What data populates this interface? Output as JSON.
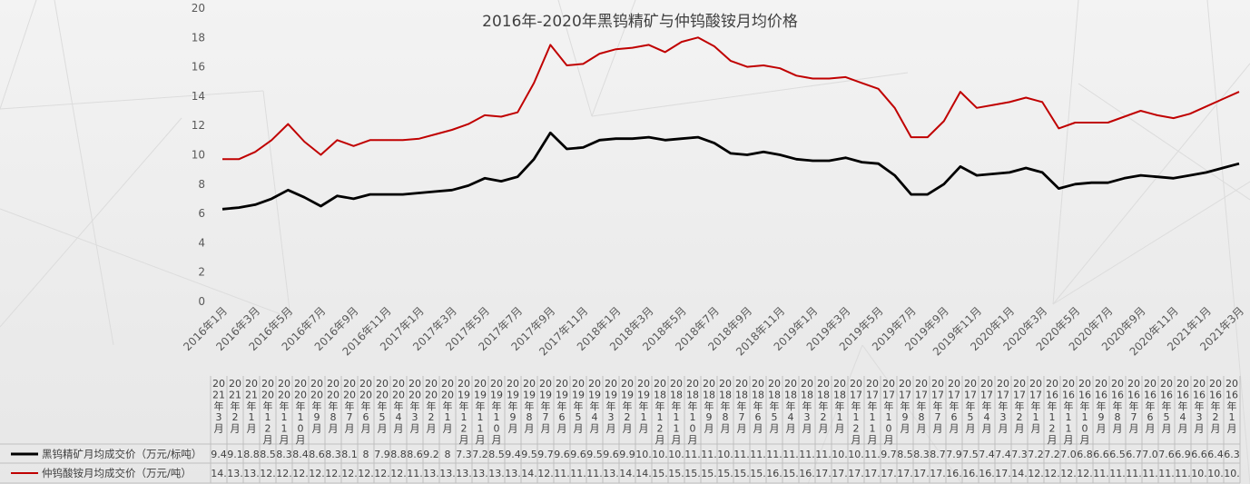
{
  "chart_data": {
    "type": "line",
    "title": "2016年-2020年黑钨精矿与仲钨酸铵月均价格",
    "xlabel": "",
    "ylabel": "",
    "ylim": [
      0,
      20
    ],
    "yticks": [
      0,
      2,
      4,
      6,
      8,
      10,
      12,
      14,
      16,
      18,
      20
    ],
    "grid": false,
    "legend": "bottom-left (data table)",
    "categories": [
      "2016年1月",
      "2016年2月",
      "2016年3月",
      "2016年4月",
      "2016年5月",
      "2016年6月",
      "2016年7月",
      "2016年8月",
      "2016年9月",
      "2016年10月",
      "2016年11月",
      "2016年12月",
      "2017年1月",
      "2017年2月",
      "2017年3月",
      "2017年4月",
      "2017年5月",
      "2017年6月",
      "2017年7月",
      "2017年8月",
      "2017年9月",
      "2017年10月",
      "2017年11月",
      "2017年12月",
      "2018年1月",
      "2018年2月",
      "2018年3月",
      "2018年4月",
      "2018年5月",
      "2018年6月",
      "2018年7月",
      "2018年8月",
      "2018年9月",
      "2018年10月",
      "2018年11月",
      "2018年12月",
      "2019年1月",
      "2019年2月",
      "2019年3月",
      "2019年4月",
      "2019年5月",
      "2019年6月",
      "2019年7月",
      "2019年8月",
      "2019年9月",
      "2019年10月",
      "2019年11月",
      "2019年12月",
      "2020年1月",
      "2020年2月",
      "2020年3月",
      "2020年4月",
      "2020年5月",
      "2020年6月",
      "2020年7月",
      "2020年8月",
      "2020年9月",
      "2020年10月",
      "2020年11月",
      "2020年12月",
      "2021年1月",
      "2021年2月",
      "2021年3月"
    ],
    "axis_labels": [
      "2016年1月",
      "2016年3月",
      "2016年5月",
      "2016年7月",
      "2016年9月",
      "2016年11月",
      "2017年1月",
      "2017年3月",
      "2017年5月",
      "2017年7月",
      "2017年9月",
      "2017年11月",
      "2018年1月",
      "2018年3月",
      "2018年5月",
      "2018年7月",
      "2018年9月",
      "2018年11月",
      "2019年1月",
      "2019年3月",
      "2019年5月",
      "2019年7月",
      "2019年9月",
      "2019年11月",
      "2020年1月",
      "2020年3月",
      "2020年5月",
      "2020年7月",
      "2020年9月",
      "2020年11月",
      "2021年1月",
      "2021年3月"
    ],
    "table_headers": [
      "2021年3月",
      "2021年2月",
      "2021年1月",
      "2020年12月",
      "2020年11月",
      "2020年10月",
      "2020年9月",
      "2020年8月",
      "2020年7月",
      "2020年6月",
      "2020年5月",
      "2020年4月",
      "2020年3月",
      "2020年2月",
      "2020年1月",
      "2019年12月",
      "2019年11月",
      "2019年10月",
      "2019年9月",
      "2019年8月",
      "2019年7月",
      "2019年6月",
      "2019年5月",
      "2019年4月",
      "2019年3月",
      "2019年2月",
      "2019年1月",
      "2018年12月",
      "2018年11月",
      "2018年10月",
      "2018年9月",
      "2018年8月",
      "2018年7月",
      "2018年6月",
      "2018年5月",
      "2018年4月",
      "2018年3月",
      "2018年2月",
      "2018年1月",
      "2017年12月",
      "2017年11月",
      "2017年10月",
      "2017年9月",
      "2017年8月",
      "2017年7月",
      "2017年6月",
      "2017年5月",
      "2017年4月",
      "2017年3月",
      "2017年2月",
      "2017年1月",
      "2016年12月",
      "2016年11月",
      "2016年10月",
      "2016年9月",
      "2016年8月",
      "2016年7月",
      "2016年6月",
      "2016年5月",
      "2016年4月",
      "2016年3月",
      "2016年2月",
      "2016年1月"
    ],
    "series": [
      {
        "name": "黑钨精矿月均成交价（万元/标吨）",
        "color": "#000000",
        "values": [
          6.3,
          6.4,
          6.6,
          7.0,
          7.6,
          7.1,
          6.5,
          7.2,
          7.0,
          7.3,
          7.3,
          7.3,
          7.4,
          7.5,
          7.6,
          7.9,
          8.4,
          8.2,
          8.5,
          9.7,
          11.5,
          10.4,
          10.5,
          11.0,
          11.1,
          11.1,
          11.2,
          11.0,
          11.1,
          11.2,
          10.8,
          10.1,
          10.0,
          10.2,
          10.0,
          9.7,
          9.6,
          9.6,
          9.8,
          9.5,
          9.4,
          8.6,
          7.3,
          7.3,
          8.0,
          9.2,
          8.6,
          8.7,
          8.8,
          9.1,
          8.8,
          7.7,
          8.0,
          8.1,
          8.1,
          8.4,
          8.6,
          8.5,
          8.4,
          8.6,
          8.8,
          9.1,
          9.4
        ],
        "table_values": [
          "9.4",
          "9.1",
          "8.8",
          "8.5",
          "8.3",
          "8.4",
          "8.6",
          "8.3",
          "8.1",
          "8",
          "7.9",
          "8.8",
          "8.6",
          "9.2",
          "8",
          "7.3",
          "7.2",
          "8.5",
          "9.4",
          "9.5",
          "9.7",
          "9.6",
          "9.6",
          "9.5",
          "9.6",
          "9.9",
          "10.",
          "10.",
          "10.",
          "11.",
          "11.",
          "10.",
          "11.",
          "11.",
          "11.",
          "11.",
          "11.",
          "11.",
          "10.",
          "10.",
          "11.",
          "9.7",
          "8.5",
          "8.3",
          "8.7",
          "7.9",
          "7.5",
          "7.4",
          "7.4",
          "7.3",
          "7.2",
          "7.2",
          "7.0",
          "6.8",
          "6.6",
          "6.5",
          "6.7",
          "7.0",
          "7.6",
          "6.9",
          "6.6",
          "6.4",
          "6.3"
        ]
      },
      {
        "name": "仲钨酸铵月均成交价（万元/吨）",
        "color": "#c00000",
        "values": [
          9.7,
          9.7,
          10.2,
          11.0,
          12.1,
          10.9,
          10.0,
          11.0,
          10.6,
          11.0,
          11.0,
          11.0,
          11.1,
          11.4,
          11.7,
          12.1,
          12.7,
          12.6,
          12.9,
          14.9,
          17.5,
          16.1,
          16.2,
          16.9,
          17.2,
          17.3,
          17.5,
          17.0,
          17.7,
          18.0,
          17.4,
          16.4,
          16.0,
          16.1,
          15.9,
          15.4,
          15.2,
          15.2,
          15.3,
          14.9,
          14.5,
          13.2,
          11.2,
          11.2,
          12.3,
          14.3,
          13.2,
          13.4,
          13.6,
          13.9,
          13.6,
          11.8,
          12.2,
          12.2,
          12.2,
          12.6,
          13.0,
          12.7,
          12.5,
          12.8,
          13.3,
          13.8,
          14.3
        ],
        "table_values": [
          "14.",
          "13.",
          "13.",
          "12.",
          "12.",
          "12.",
          "12.",
          "12.",
          "12.",
          "12.",
          "12.",
          "12.",
          "11.",
          "13.",
          "13.",
          "13.",
          "13.",
          "13.",
          "13.",
          "14.",
          "12.",
          "11.",
          "11.",
          "11.",
          "13.",
          "14.",
          "14.",
          "15.",
          "15.",
          "15.",
          "15.",
          "15.",
          "15.",
          "15.",
          "16.",
          "15.",
          "16.",
          "17.",
          "17.",
          "17.",
          "17.",
          "17.",
          "17.",
          "17.",
          "17.",
          "16.",
          "16.",
          "16.",
          "17.",
          "14.",
          "12.",
          "12.",
          "12.",
          "12.",
          "11.",
          "11.",
          "11.",
          "11.",
          "11.",
          "11.",
          "10.",
          "10.",
          "10."
        ]
      }
    ]
  }
}
